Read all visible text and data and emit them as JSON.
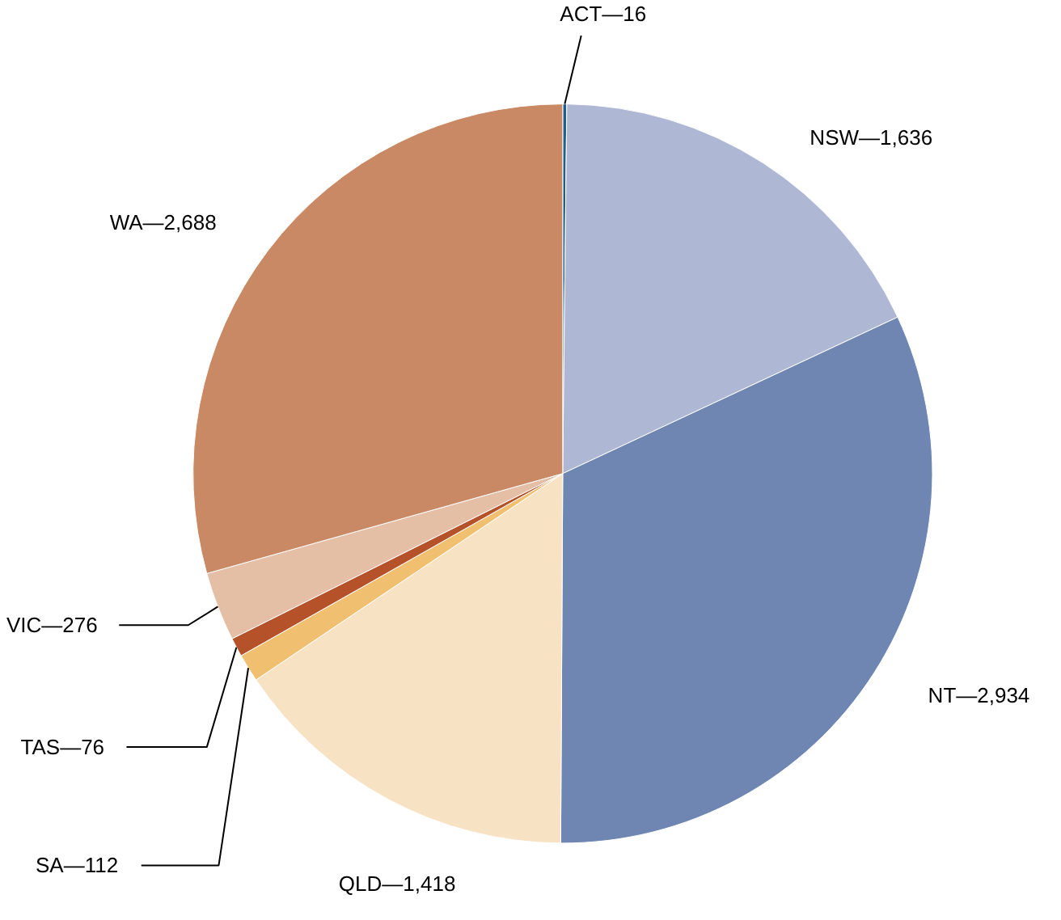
{
  "chart_data": {
    "type": "pie",
    "categories": [
      "ACT",
      "NSW",
      "NT",
      "QLD",
      "SA",
      "TAS",
      "VIC",
      "WA"
    ],
    "values": [
      16,
      1636,
      2934,
      1418,
      112,
      76,
      276,
      2688
    ],
    "colors": [
      "#1f5f8b",
      "#aeb8d5",
      "#6f86b3",
      "#f7e3c3",
      "#f0c070",
      "#b5522a",
      "#e4bfa5",
      "#c98964"
    ],
    "value_labels": [
      "—16",
      "—1,636",
      "—2,934",
      "—1,418",
      "—112",
      "—76",
      "—276",
      "—2,688"
    ]
  }
}
